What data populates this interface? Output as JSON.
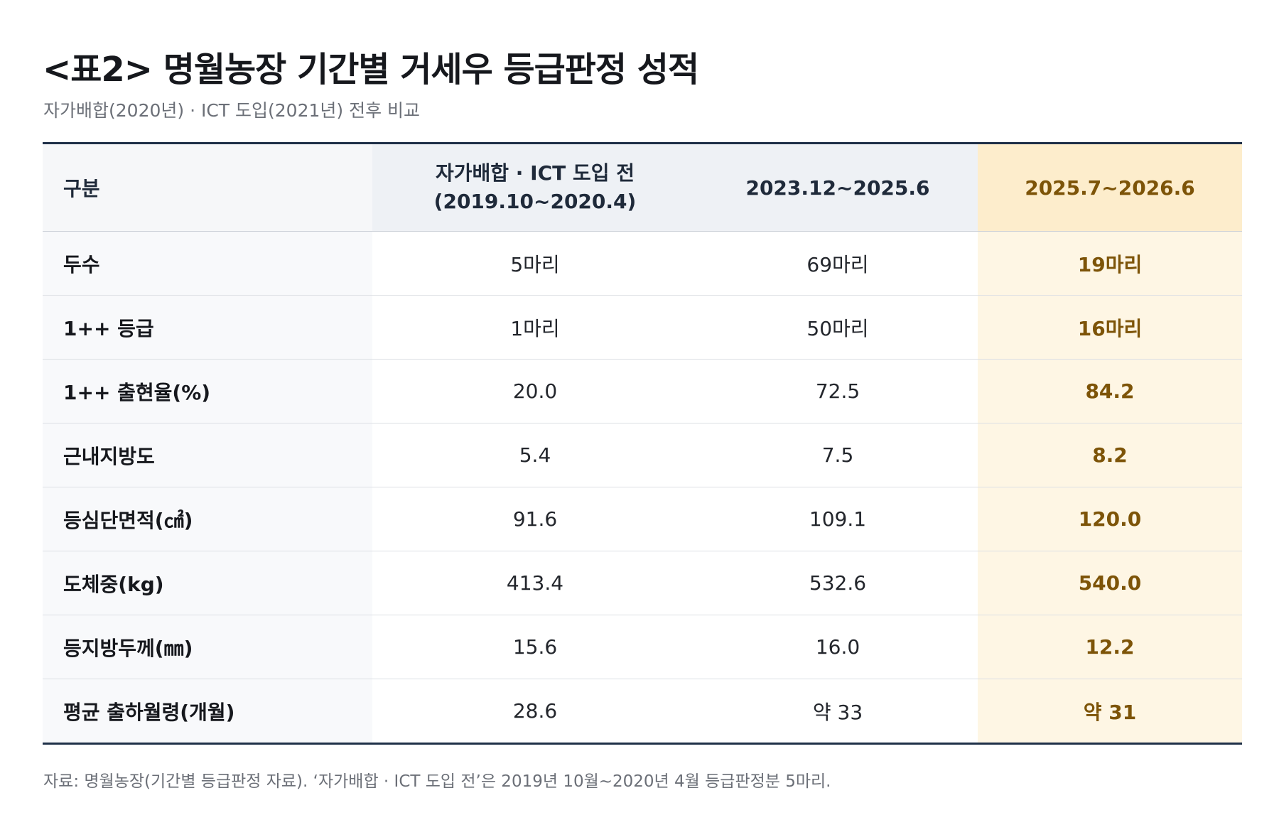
{
  "title": "<표2> 명월농장 기간별 거세우 등급판정 성적",
  "subtitle": "자가배합(2020년) · ICT 도입(2021년) 전후 비교",
  "table": {
    "headers": {
      "category": "구분",
      "period1_line1": "자가배합 · ICT 도입 전",
      "period1_line2": "(2019.10~2020.4)",
      "period2": "2023.12~2025.6",
      "period3": "2025.7~2026.6"
    },
    "rows": [
      {
        "label": "두수",
        "p1": "5마리",
        "p2": "69마리",
        "p3": "19마리"
      },
      {
        "label": "1++ 등급",
        "p1": "1마리",
        "p2": "50마리",
        "p3": "16마리"
      },
      {
        "label": "1++ 출현율(%)",
        "p1": "20.0",
        "p2": "72.5",
        "p3": "84.2"
      },
      {
        "label": "근내지방도",
        "p1": "5.4",
        "p2": "7.5",
        "p3": "8.2"
      },
      {
        "label": "등심단면적(㎠)",
        "p1": "91.6",
        "p2": "109.1",
        "p3": "120.0"
      },
      {
        "label": "도체중(kg)",
        "p1": "413.4",
        "p2": "532.6",
        "p3": "540.0"
      },
      {
        "label": "등지방두께(㎜)",
        "p1": "15.6",
        "p2": "16.0",
        "p3": "12.2"
      },
      {
        "label": "평균 출하월령(개월)",
        "p1": "28.6",
        "p2": "약 33",
        "p3": "약 31"
      }
    ]
  },
  "footnote": "자료: 명월농장(기간별 등급판정 자료). ‘자가배합 · ICT 도입 전’은 2019년 10월~2020년 4월 등급판정분 5마리.",
  "colors": {
    "border": "#1f3048",
    "highlight_header": "#fdedcc",
    "highlight_cell": "#fef6e4",
    "highlight_text": "#7d5408"
  }
}
